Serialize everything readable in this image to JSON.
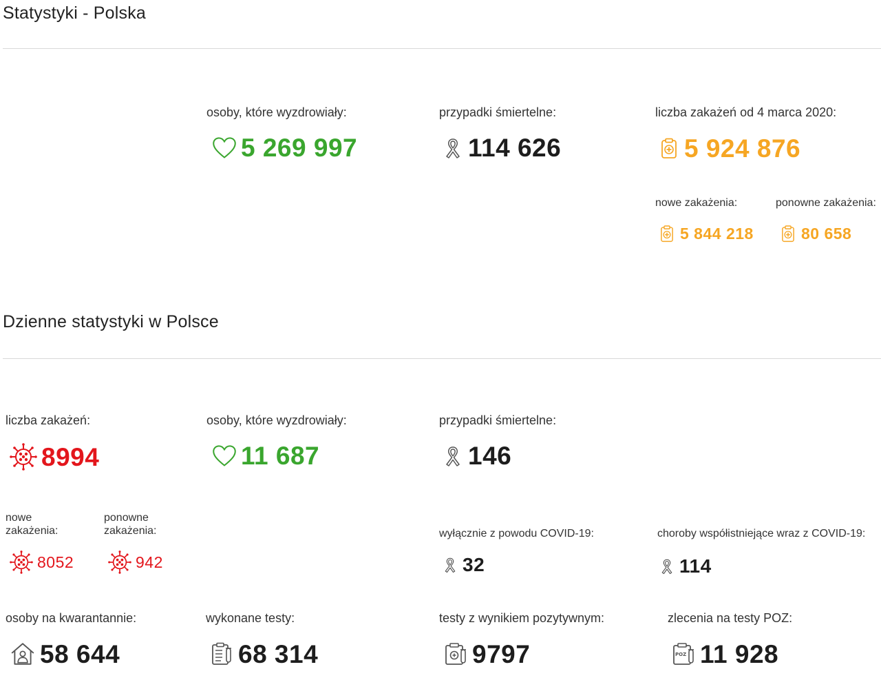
{
  "colors": {
    "green": "#3aa62e",
    "orange": "#f6a623",
    "red": "#e3161c",
    "dark": "#1d1d1d",
    "gray": "#666666"
  },
  "overall": {
    "title": "Statystyki - Polska",
    "recovered": {
      "label": "osoby, które wyzdrowiały:",
      "value": "5 269 997",
      "icon": "heart-icon"
    },
    "deaths": {
      "label": "przypadki śmiertelne:",
      "value": "114 626",
      "icon": "ribbon-icon"
    },
    "infections": {
      "label": "liczba zakażeń od 4 marca 2020:",
      "value": "5 924 876",
      "icon": "clipboard-icon"
    },
    "new_infections": {
      "label": "nowe zakażenia:",
      "value": "5 844 218",
      "icon": "clipboard-icon"
    },
    "reinfections": {
      "label": "ponowne zakażenia:",
      "value": "80 658",
      "icon": "clipboard-icon"
    }
  },
  "daily": {
    "title": "Dzienne statystyki w Polsce",
    "infections": {
      "label": "liczba zakażeń:",
      "value": "8994",
      "icon": "virus-icon"
    },
    "recovered": {
      "label": "osoby, które wyzdrowiały:",
      "value": "11 687",
      "icon": "heart-icon"
    },
    "deaths": {
      "label": "przypadki śmiertelne:",
      "value": "146",
      "icon": "ribbon-icon"
    },
    "new_infections": {
      "label_line1": "nowe",
      "label_line2": "zakażenia:",
      "value": "8052",
      "icon": "virus-icon"
    },
    "reinfections": {
      "label_line1": "ponowne",
      "label_line2": "zakażenia:",
      "value": "942",
      "icon": "virus-icon"
    },
    "covid_only": {
      "label": "wyłącznie z powodu COVID-19:",
      "value": "32",
      "icon": "ribbon-icon"
    },
    "comorbid": {
      "label": "choroby współistniejące wraz z COVID-19:",
      "value": "114",
      "icon": "ribbon-icon"
    },
    "quarantine": {
      "label": "osoby na kwarantannie:",
      "value": "58 644",
      "icon": "house-person-icon"
    },
    "tests": {
      "label": "wykonane testy:",
      "value": "68 314",
      "icon": "test-clipboard-icon"
    },
    "positive_tests": {
      "label": "testy z wynikiem pozytywnym:",
      "value": "9797",
      "icon": "positive-test-icon"
    },
    "poz_orders": {
      "label": "zlecenia na testy POZ:",
      "value": "11 928",
      "icon": "poz-test-icon",
      "icon_text": "POZ"
    }
  }
}
